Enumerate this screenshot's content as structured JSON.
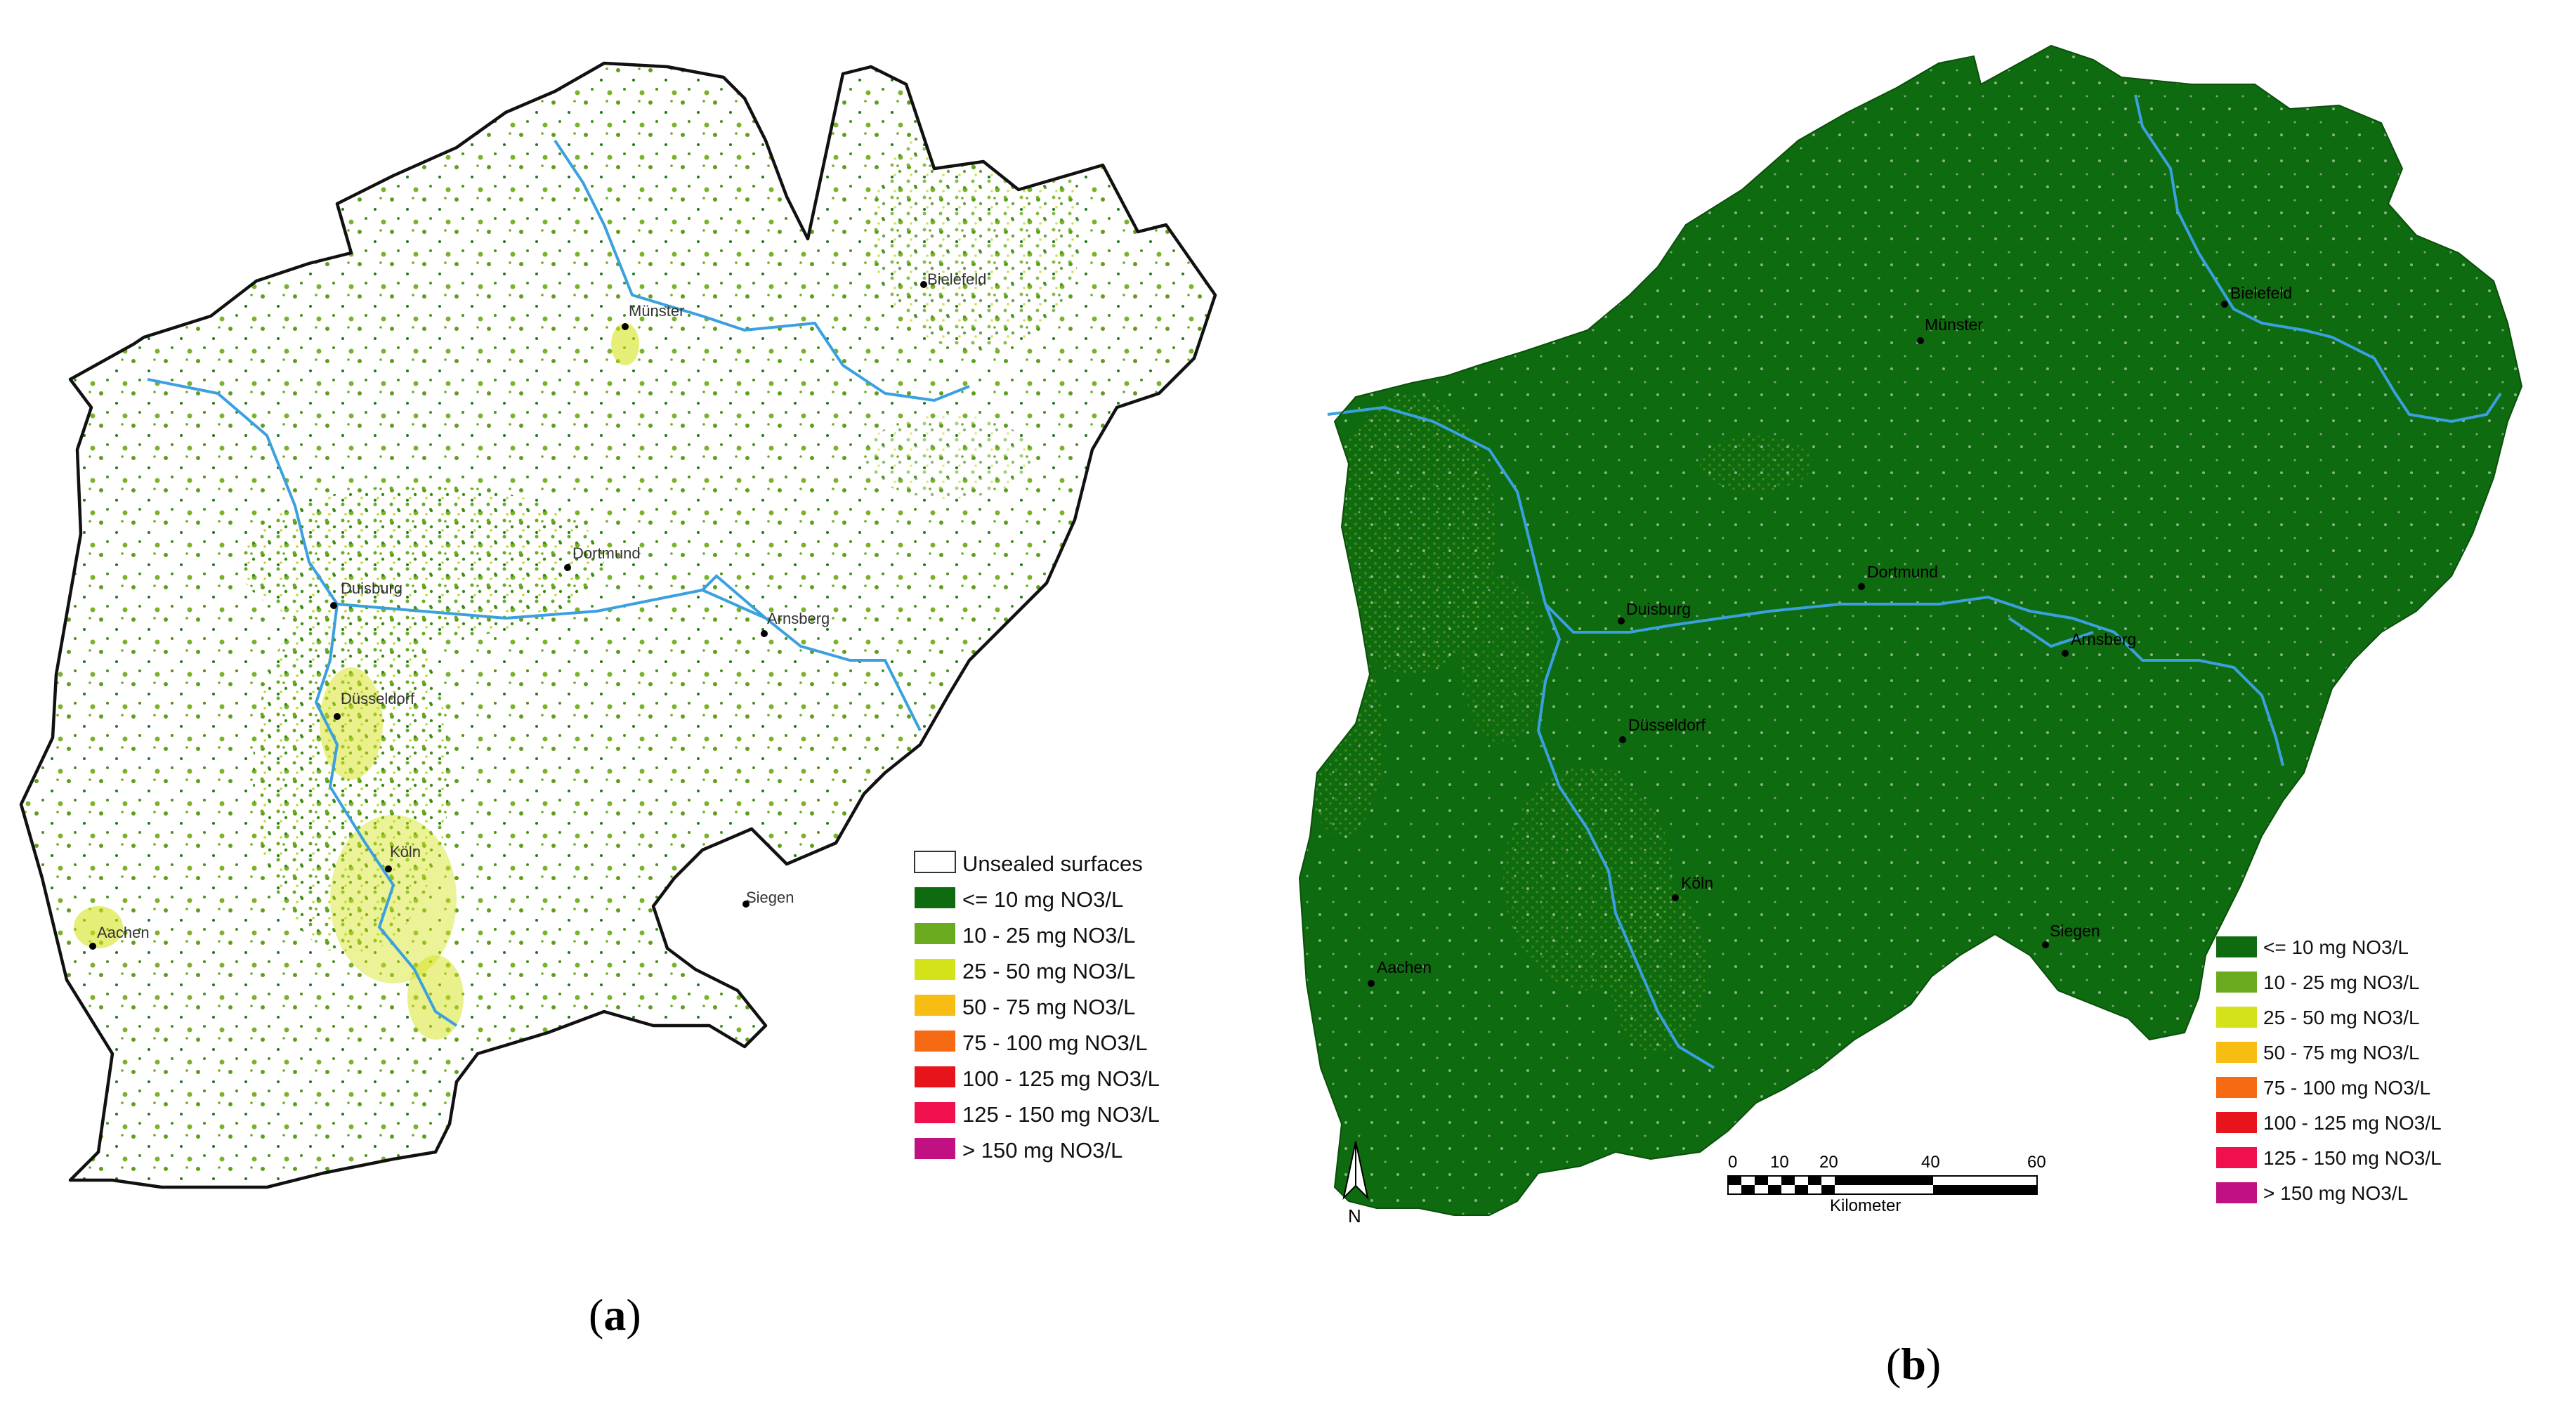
{
  "panel_a": {
    "caption_letter": "a",
    "cities": [
      {
        "name": "Münster"
      },
      {
        "name": "Bielefeld"
      },
      {
        "name": "Dortmund"
      },
      {
        "name": "Duisburg"
      },
      {
        "name": "Arnsberg"
      },
      {
        "name": "Düsseldorf"
      },
      {
        "name": "Köln"
      },
      {
        "name": "Siegen"
      },
      {
        "name": "Aachen"
      }
    ],
    "legend": [
      {
        "label": "Unsealed surfaces",
        "color": "#ffffff"
      },
      {
        "label": "<= 10 mg NO3/L",
        "color": "#0f6b0f"
      },
      {
        "label": "10 - 25 mg NO3/L",
        "color": "#6aaa1e"
      },
      {
        "label": "25 - 50 mg NO3/L",
        "color": "#d4e21a"
      },
      {
        "label": "50 - 75 mg NO3/L",
        "color": "#f7bd12"
      },
      {
        "label": "75 - 100 mg NO3/L",
        "color": "#f56a12"
      },
      {
        "label": "100 - 125 mg NO3/L",
        "color": "#e8141c"
      },
      {
        "label": "125 - 150 mg NO3/L",
        "color": "#f0104e"
      },
      {
        "label": "> 150 mg NO3/L",
        "color": "#c01082"
      }
    ]
  },
  "panel_b": {
    "caption_letter": "b",
    "cities": [
      {
        "name": "Münster"
      },
      {
        "name": "Bielefeld"
      },
      {
        "name": "Dortmund"
      },
      {
        "name": "Duisburg"
      },
      {
        "name": "Arnsberg"
      },
      {
        "name": "Düsseldorf"
      },
      {
        "name": "Köln"
      },
      {
        "name": "Siegen"
      },
      {
        "name": "Aachen"
      }
    ],
    "legend": [
      {
        "label": "<= 10 mg NO3/L",
        "color": "#0f6b0f"
      },
      {
        "label": "10 - 25 mg NO3/L",
        "color": "#6aaa1e"
      },
      {
        "label": "25 - 50 mg NO3/L",
        "color": "#d4e21a"
      },
      {
        "label": "50 - 75 mg NO3/L",
        "color": "#f7bd12"
      },
      {
        "label": "75 - 100 mg NO3/L",
        "color": "#f56a12"
      },
      {
        "label": "100 - 125 mg NO3/L",
        "color": "#e8141c"
      },
      {
        "label": "125 - 150 mg NO3/L",
        "color": "#f0104e"
      },
      {
        "label": "> 150 mg NO3/L",
        "color": "#c01082"
      }
    ],
    "scale_bar": {
      "ticks": [
        "0",
        "10",
        "20",
        "40",
        "60"
      ],
      "unit": "Kilometer"
    },
    "north_arrow": "N"
  },
  "colors": {
    "map_fill_b": "#0f6b0f",
    "river": "#3aa0e0",
    "border": "#111111",
    "speckle_a": "#5e9e1c",
    "speckle_a_yellow": "#d4e21a"
  }
}
